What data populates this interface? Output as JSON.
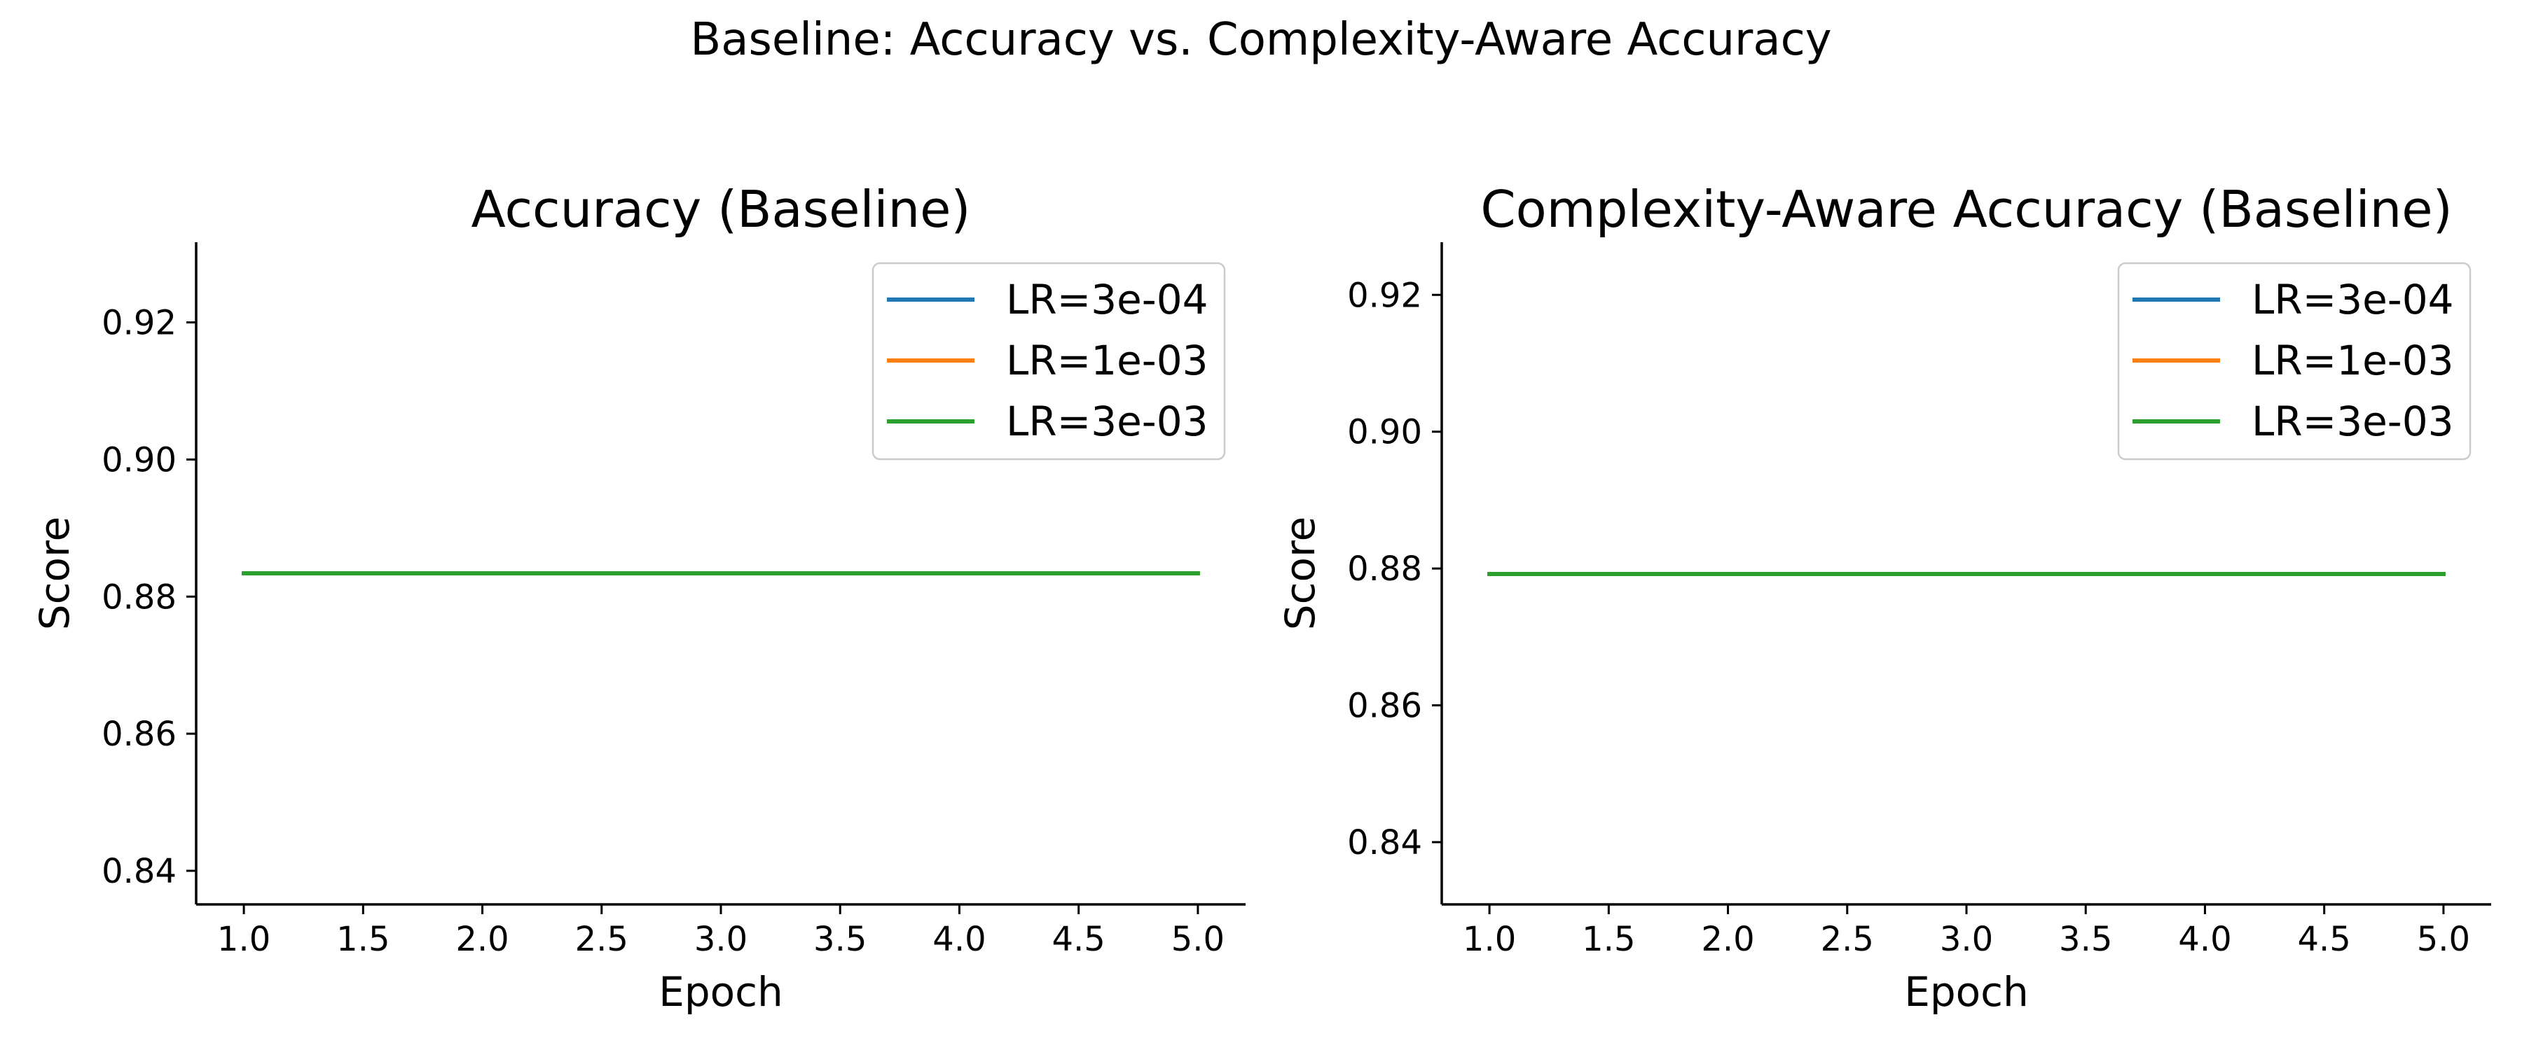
{
  "figure": {
    "suptitle": "Baseline: Accuracy vs. Complexity-Aware Accuracy"
  },
  "chart_data": [
    {
      "type": "line",
      "title": "Accuracy (Baseline)",
      "xlabel": "Epoch",
      "ylabel": "Score",
      "x": [
        1,
        2,
        3,
        4,
        5
      ],
      "xlim": [
        0.8,
        5.2
      ],
      "ylim": [
        0.8351,
        0.9317
      ],
      "xticks": [
        1.0,
        1.5,
        2.0,
        2.5,
        3.0,
        3.5,
        4.0,
        4.5,
        5.0
      ],
      "xtick_labels": [
        "1.0",
        "1.5",
        "2.0",
        "2.5",
        "3.0",
        "3.5",
        "4.0",
        "4.5",
        "5.0"
      ],
      "yticks": [
        0.84,
        0.86,
        0.88,
        0.9,
        0.92
      ],
      "ytick_labels": [
        "0.84",
        "0.86",
        "0.88",
        "0.90",
        "0.92"
      ],
      "grid": false,
      "legend_position": "top-right",
      "series": [
        {
          "name": "LR=3e-04",
          "color": "#1f77b4",
          "values": [
            0.8834,
            0.8834,
            0.8834,
            0.8834,
            0.8834
          ]
        },
        {
          "name": "LR=1e-03",
          "color": "#ff7f0e",
          "values": [
            0.8834,
            0.8834,
            0.8834,
            0.8834,
            0.8834
          ]
        },
        {
          "name": "LR=3e-03",
          "color": "#2ca02c",
          "values": [
            0.8834,
            0.8834,
            0.8834,
            0.8834,
            0.8834
          ]
        }
      ]
    },
    {
      "type": "line",
      "title": "Complexity-Aware Accuracy (Baseline)",
      "xlabel": "Epoch",
      "ylabel": "Score",
      "x": [
        1,
        2,
        3,
        4,
        5
      ],
      "xlim": [
        0.8,
        5.2
      ],
      "ylim": [
        0.8309,
        0.9277
      ],
      "xticks": [
        1.0,
        1.5,
        2.0,
        2.5,
        3.0,
        3.5,
        4.0,
        4.5,
        5.0
      ],
      "xtick_labels": [
        "1.0",
        "1.5",
        "2.0",
        "2.5",
        "3.0",
        "3.5",
        "4.0",
        "4.5",
        "5.0"
      ],
      "yticks": [
        0.84,
        0.86,
        0.88,
        0.9,
        0.92
      ],
      "ytick_labels": [
        "0.84",
        "0.86",
        "0.88",
        "0.90",
        "0.92"
      ],
      "grid": false,
      "legend_position": "top-right",
      "series": [
        {
          "name": "LR=3e-04",
          "color": "#1f77b4",
          "values": [
            0.8792,
            0.8792,
            0.8792,
            0.8792,
            0.8792
          ]
        },
        {
          "name": "LR=1e-03",
          "color": "#ff7f0e",
          "values": [
            0.8792,
            0.8792,
            0.8792,
            0.8792,
            0.8792
          ]
        },
        {
          "name": "LR=3e-03",
          "color": "#2ca02c",
          "values": [
            0.8792,
            0.8792,
            0.8792,
            0.8792,
            0.8792
          ]
        }
      ]
    }
  ]
}
